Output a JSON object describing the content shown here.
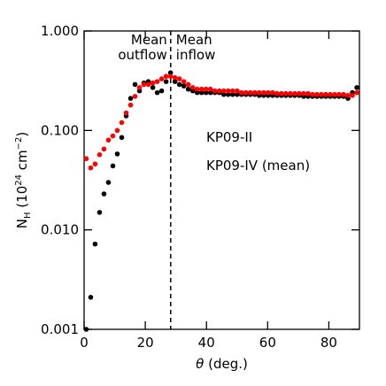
{
  "chart_data": {
    "type": "scatter",
    "log_y": true,
    "x_label": [
      {
        "text": "θ",
        "style": "italic"
      },
      {
        "text": " (deg.)"
      }
    ],
    "y_label": [
      {
        "text": "N"
      },
      {
        "text": "H",
        "shift": "sub"
      },
      {
        "text": " (10"
      },
      {
        "text": "24",
        "shift": "sup"
      },
      {
        "text": " cm"
      },
      {
        "text": "−2",
        "shift": "sup"
      },
      {
        "text": ")"
      }
    ],
    "xlim": [
      0,
      90
    ],
    "xticks": [
      0,
      20,
      40,
      60,
      80
    ],
    "ylim": [
      0.001,
      1
    ],
    "yticks": [
      0.001,
      {
        "value": 0.01,
        "label": "0.010"
      },
      {
        "value": 0.1,
        "label": "0.100"
      },
      {
        "value": 1,
        "label": "1.000"
      }
    ],
    "x": [
      0.7,
      2.15,
      3.6,
      5.05,
      6.5,
      7.95,
      9.4,
      10.85,
      12.3,
      13.75,
      15.2,
      16.65,
      18.1,
      19.55,
      21.0,
      22.45,
      23.9,
      25.35,
      26.8,
      28.25,
      29.7,
      31.15,
      32.6,
      34.05,
      35.5,
      36.95,
      38.4,
      39.85,
      41.3,
      42.75,
      44.2,
      45.65,
      47.1,
      48.55,
      50.0,
      51.45,
      52.9,
      54.35,
      55.8,
      57.25,
      58.7,
      60.15,
      61.6,
      63.05,
      64.5,
      65.95,
      67.4,
      68.85,
      70.3,
      71.75,
      73.2,
      74.65,
      76.1,
      77.55,
      79.0,
      80.45,
      81.9,
      83.35,
      84.8,
      86.25,
      87.7,
      89.15
    ],
    "series": [
      {
        "name": "KP09-II",
        "color": "#000000",
        "values": [
          0.001,
          0.0021,
          0.0072,
          0.015,
          0.023,
          0.03,
          0.044,
          0.058,
          0.085,
          0.14,
          0.21,
          0.29,
          0.25,
          0.3,
          0.31,
          0.27,
          0.24,
          0.25,
          0.31,
          0.38,
          0.31,
          0.29,
          0.28,
          0.26,
          0.25,
          0.24,
          0.24,
          0.24,
          0.24,
          0.24,
          0.24,
          0.23,
          0.23,
          0.23,
          0.23,
          0.23,
          0.23,
          0.23,
          0.23,
          0.225,
          0.225,
          0.225,
          0.225,
          0.225,
          0.225,
          0.225,
          0.225,
          0.225,
          0.225,
          0.22,
          0.22,
          0.22,
          0.22,
          0.22,
          0.22,
          0.22,
          0.22,
          0.22,
          0.22,
          0.21,
          0.24,
          0.27
        ]
      },
      {
        "name": "KP09-IV (mean)",
        "color": "#ff0000",
        "values": [
          0.052,
          0.042,
          0.046,
          0.057,
          0.065,
          0.08,
          0.088,
          0.1,
          0.12,
          0.15,
          0.18,
          0.22,
          0.27,
          0.29,
          0.29,
          0.3,
          0.31,
          0.33,
          0.35,
          0.35,
          0.34,
          0.33,
          0.31,
          0.29,
          0.27,
          0.26,
          0.26,
          0.26,
          0.26,
          0.25,
          0.25,
          0.25,
          0.25,
          0.25,
          0.25,
          0.24,
          0.24,
          0.24,
          0.24,
          0.24,
          0.24,
          0.24,
          0.24,
          0.235,
          0.235,
          0.235,
          0.235,
          0.235,
          0.235,
          0.235,
          0.235,
          0.23,
          0.23,
          0.23,
          0.23,
          0.23,
          0.23,
          0.23,
          0.23,
          0.225,
          0.225,
          0.24
        ]
      }
    ],
    "vline": 28.3,
    "annotations": {
      "outflow": [
        "Mean",
        "outflow"
      ],
      "inflow": [
        "Mean",
        "inflow"
      ]
    }
  }
}
